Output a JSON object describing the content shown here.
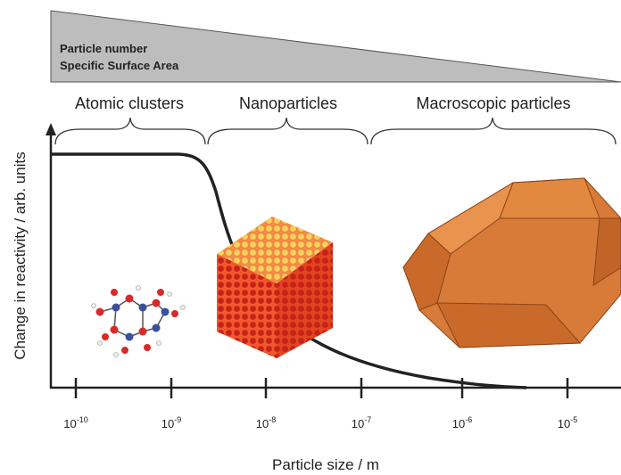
{
  "header": {
    "lines": [
      "Particle number",
      "Specific Surface Area"
    ]
  },
  "regions": [
    "Atomic clusters",
    "Nanoparticles",
    "Macroscopic particles"
  ],
  "y_axis_label": "Change in reactivity / arb. units",
  "x_axis": {
    "label": "Particle size / m",
    "ticks": [
      {
        "base": "10",
        "exponent": "-10"
      },
      {
        "base": "10",
        "exponent": "-9"
      },
      {
        "base": "10",
        "exponent": "-8"
      },
      {
        "base": "10",
        "exponent": "-7"
      },
      {
        "base": "10",
        "exponent": "-6"
      },
      {
        "base": "10",
        "exponent": "-5"
      }
    ]
  }
}
